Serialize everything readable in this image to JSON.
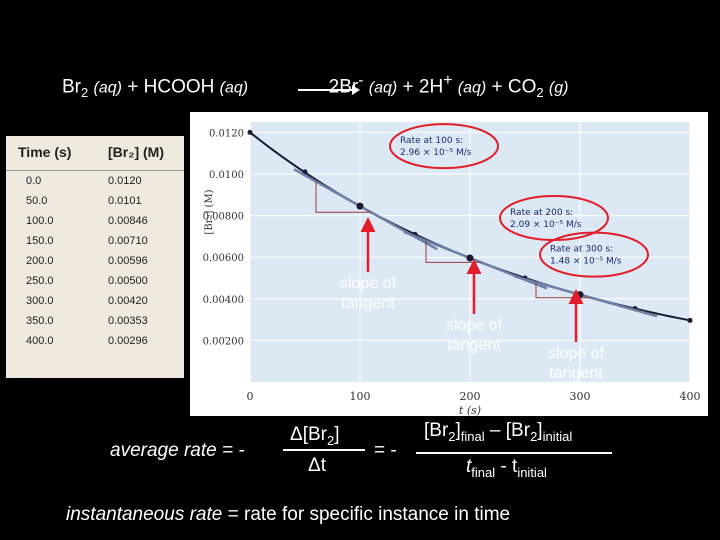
{
  "reaction": {
    "r1": "Br",
    "r1_sub": "2",
    "r1_phase": "(aq)",
    "plus1": "+ HCOOH",
    "r2_phase": "(aq)",
    "p1": "2Br",
    "p1_sup": "-",
    "p1_phase": "(aq)",
    "plus2": "+ 2H",
    "p2_sup": "+",
    "p2_phase": "(aq)",
    "plus3": "+ CO",
    "p3_sub": "2",
    "p3_phase": "(g)"
  },
  "table": {
    "headers": [
      "Time (s)",
      "[Br₂] (M)"
    ],
    "rows": [
      [
        "0.0",
        "0.0120"
      ],
      [
        "50.0",
        "0.0101"
      ],
      [
        "100.0",
        "0.00846"
      ],
      [
        "150.0",
        "0.00710"
      ],
      [
        "200.0",
        "0.00596"
      ],
      [
        "250.0",
        "0.00500"
      ],
      [
        "300.0",
        "0.00420"
      ],
      [
        "350.0",
        "0.00353"
      ],
      [
        "400.0",
        "0.00296"
      ]
    ]
  },
  "chart_data": {
    "type": "line",
    "xlabel": "t (s)",
    "ylabel": "[Br₂] (M)",
    "xlim": [
      0,
      400
    ],
    "ylim": [
      0,
      0.0125
    ],
    "x_ticks": [
      "0",
      "100",
      "200",
      "300",
      "400"
    ],
    "y_ticks": [
      "0.00200",
      "0.00400",
      "0.00600",
      "0.00800",
      "0.0100",
      "0.0120"
    ],
    "series": [
      {
        "x": [
          0,
          50,
          100,
          150,
          200,
          250,
          300,
          350,
          400
        ],
        "y": [
          0.012,
          0.0101,
          0.00846,
          0.0071,
          0.00596,
          0.005,
          0.0042,
          0.00353,
          0.00296
        ]
      }
    ],
    "annotations": [
      {
        "t": 100,
        "line1": "Rate at 100 s:",
        "line2": "2.96 × 10⁻⁵ M/s"
      },
      {
        "t": 200,
        "line1": "Rate at 200 s:",
        "line2": "2.09 × 10⁻⁵ M/s"
      },
      {
        "t": 300,
        "line1": "Rate at 300 s:",
        "line2": "1.48 × 10⁻⁵ M/s"
      }
    ],
    "tangent_slopes": [
      -2.96e-05,
      -2.09e-05,
      -1.48e-05
    ],
    "colors": {
      "background": "#dce8f4",
      "curve": "#1a1a2e",
      "tangent": "#6e7fa8",
      "highlight": "#e11d2a",
      "grid": "#ffffff"
    }
  },
  "labels": {
    "slope1": "slope of\ntangent",
    "slope2": "slope of\ntangent",
    "slope3": "slope of\ntangent"
  },
  "formula": {
    "avg_label": "average rate = -",
    "num": "Δ[Br",
    "num_sub": "2",
    "num_end": "]",
    "den": "Δt",
    "eq2": "= -",
    "num2_a": "[Br",
    "num2_sub_a": "2",
    "num2_b": "]",
    "num2_sub_b": "final",
    "num2_mid": " – [Br",
    "num2_sub_c": "2",
    "num2_c": "]",
    "num2_sub_d": "initial",
    "den2_a": "t",
    "den2_sub_a": "final",
    "den2_mid": " - t",
    "den2_sub_b": "initial"
  },
  "definition": {
    "term": "instantaneous rate",
    "rest": " = rate for specific instance in time"
  }
}
